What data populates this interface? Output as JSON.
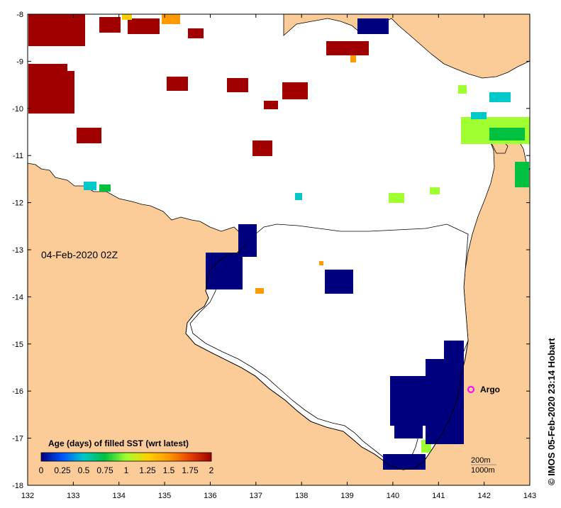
{
  "map": {
    "date_label": "04-Feb-2020 02Z",
    "credit": "© IMOS 05-Feb-2020 23:14 Hobart",
    "x_ticks": [
      "132",
      "133",
      "134",
      "135",
      "136",
      "137",
      "138",
      "139",
      "140",
      "141",
      "142",
      "143"
    ],
    "y_ticks": [
      "-8",
      "-9",
      "-10",
      "-11",
      "-12",
      "-13",
      "-14",
      "-15",
      "-16",
      "-17",
      "-18"
    ],
    "legend": {
      "title": "Age (days) of filled SST (wrt latest)",
      "ticks": [
        "0",
        "0.25",
        "0.5",
        "0.75",
        "1",
        "1.25",
        "1.5",
        "1.75",
        "2"
      ],
      "colors": [
        "#00007f",
        "#0055ff",
        "#00c8c8",
        "#00c040",
        "#a0ff30",
        "#ffd000",
        "#ff9a00",
        "#e84000",
        "#a00000"
      ]
    },
    "argo": {
      "label": "Argo",
      "color": "#ff00ff"
    },
    "contour_key": {
      "shallow": "200m",
      "deep": "1000m"
    },
    "colors": {
      "land": "#fbcb98",
      "ocean": "#ffffff",
      "coast": "#000000"
    }
  }
}
